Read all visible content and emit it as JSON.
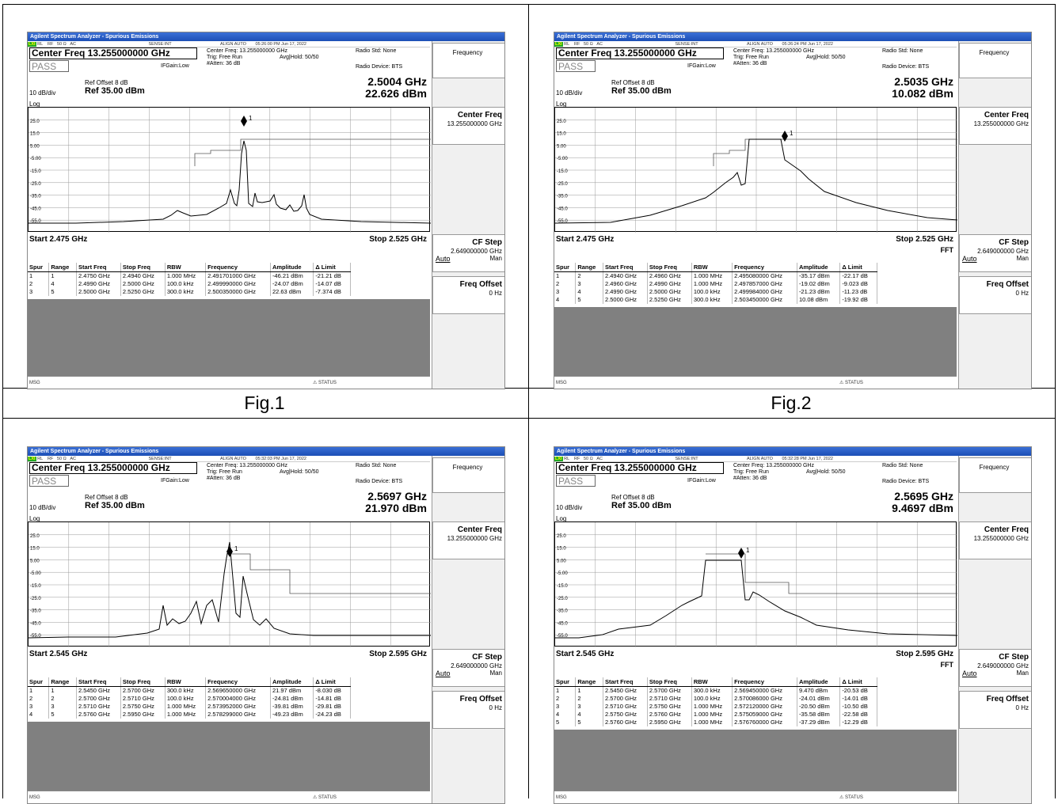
{
  "title_bar": "Agilent Spectrum Analyzer - Spurious Emissions",
  "status": {
    "rl": "RL",
    "rf": "RF",
    "ohm": "50 Ω",
    "ac": "AC",
    "sense": "SENSE:INT",
    "align": "ALIGN AUTO"
  },
  "labels": {
    "trig": "Trig: Free Run",
    "ifgain": "IFGain:Low",
    "radio_std": "Radio Std: None",
    "radio_dev": "Radio Device: BTS",
    "ref_offset": "Ref Offset 8 dB",
    "scale": "10 dB/div",
    "ref": "Ref 35.00 dBm",
    "log": "Log",
    "pass": "PASS",
    "msg": "MSG",
    "status_text": "STATUS",
    "fft": "FFT",
    "center_freq_hdr": "Center Freq: 13.255000000 GHz",
    "cf": "Center Freq 13.255000000 GHz",
    "avg": "Avg|Hold: 50/50",
    "atten": "#Atten: 36 dB"
  },
  "softkeys": {
    "frequency": "Frequency",
    "center_freq": "Center Freq",
    "center_val": "13.255000000 GHz",
    "cf_step": "CF Step",
    "cf_step_val": "2.649000000 GHz",
    "auto": "Auto",
    "man": "Man",
    "freq_offset": "Freq Offset",
    "offset_val": "0 Hz"
  },
  "table_headers": [
    "Spur",
    "Range",
    "Start Freq",
    "Stop Freq",
    "RBW",
    "Frequency",
    "Amplitude",
    "Δ Limit"
  ],
  "y_ticks": [
    "25.0",
    "15.0",
    "5.00",
    "-5.00",
    "-15.0",
    "-25.0",
    "-35.0",
    "-45.0",
    "-55.0"
  ],
  "figures": [
    {
      "caption": "Fig.1",
      "time": "05:26:00 PM Jun 17, 2022",
      "mkr_freq": "2.5004 GHz",
      "mkr_amp": "22.626 dBm",
      "start": "Start 2.475 GHz",
      "stop": "Stop 2.525 GHz",
      "fft": false,
      "rows": [
        [
          "1",
          "1",
          "2.4750 GHz",
          "2.4940 GHz",
          "1.000 MHz",
          "2.491701000 GHz",
          "-46.21 dBm",
          "-21.21 dB"
        ],
        [
          "2",
          "4",
          "2.4990 GHz",
          "2.5000 GHz",
          "100.0 kHz",
          "2.499990000 GHz",
          "-24.07 dBm",
          "-14.07 dB"
        ],
        [
          "3",
          "5",
          "2.5000 GHz",
          "2.5250 GHz",
          "300.0 kHz",
          "2.500350000 GHz",
          "22.63 dBm",
          "-7.374 dB"
        ]
      ]
    },
    {
      "caption": "Fig.2",
      "time": "05:26:24 PM Jun 17, 2022",
      "mkr_freq": "2.5035 GHz",
      "mkr_amp": "10.082 dBm",
      "start": "Start 2.475 GHz",
      "stop": "Stop 2.525 GHz",
      "fft": true,
      "rows": [
        [
          "1",
          "2",
          "2.4940 GHz",
          "2.4960 GHz",
          "1.000 MHz",
          "2.495080000 GHz",
          "-35.17 dBm",
          "-22.17 dB"
        ],
        [
          "2",
          "3",
          "2.4960 GHz",
          "2.4990 GHz",
          "1.000 MHz",
          "2.497857000 GHz",
          "-19.02 dBm",
          "-9.023 dB"
        ],
        [
          "3",
          "4",
          "2.4990 GHz",
          "2.5000 GHz",
          "100.0 kHz",
          "2.499984000 GHz",
          "-21.23 dBm",
          "-11.23 dB"
        ],
        [
          "4",
          "5",
          "2.5000 GHz",
          "2.5250 GHz",
          "300.0 kHz",
          "2.503450000 GHz",
          "10.08 dBm",
          "-19.92 dB"
        ]
      ]
    },
    {
      "caption": "",
      "time": "05:32:03 PM Jun 17, 2022",
      "mkr_freq": "2.5697 GHz",
      "mkr_amp": "21.970 dBm",
      "start": "Start 2.545 GHz",
      "stop": "Stop 2.595 GHz",
      "fft": false,
      "rows": [
        [
          "1",
          "1",
          "2.5450 GHz",
          "2.5700 GHz",
          "300.0 kHz",
          "2.569650000 GHz",
          "21.97 dBm",
          "-8.030 dB"
        ],
        [
          "2",
          "2",
          "2.5700 GHz",
          "2.5710 GHz",
          "100.0 kHz",
          "2.570004000 GHz",
          "-24.81 dBm",
          "-14.81 dB"
        ],
        [
          "3",
          "3",
          "2.5710 GHz",
          "2.5750 GHz",
          "1.000 MHz",
          "2.573952000 GHz",
          "-39.81 dBm",
          "-29.81 dB"
        ],
        [
          "4",
          "5",
          "2.5760 GHz",
          "2.5950 GHz",
          "1.000 MHz",
          "2.578299000 GHz",
          "-49.23 dBm",
          "-24.23 dB"
        ]
      ]
    },
    {
      "caption": "",
      "time": "05:32:28 PM Jun 17, 2022",
      "mkr_freq": "2.5695 GHz",
      "mkr_amp": "9.4697 dBm",
      "start": "Start 2.545 GHz",
      "stop": "Stop 2.595 GHz",
      "fft": true,
      "rows": [
        [
          "1",
          "1",
          "2.5450 GHz",
          "2.5700 GHz",
          "300.0 kHz",
          "2.569450000 GHz",
          "9.470 dBm",
          "-20.53 dB"
        ],
        [
          "2",
          "2",
          "2.5700 GHz",
          "2.5710 GHz",
          "100.0 kHz",
          "2.570086000 GHz",
          "-24.01 dBm",
          "-14.01 dB"
        ],
        [
          "3",
          "3",
          "2.5710 GHz",
          "2.5750 GHz",
          "1.000 MHz",
          "2.572120000 GHz",
          "-20.50 dBm",
          "-10.50 dB"
        ],
        [
          "4",
          "4",
          "2.5750 GHz",
          "2.5760 GHz",
          "1.000 MHz",
          "2.575059000 GHz",
          "-35.58 dBm",
          "-22.58 dB"
        ],
        [
          "5",
          "5",
          "2.5760 GHz",
          "2.5950 GHz",
          "1.000 MHz",
          "2.576760000 GHz",
          "-37.29 dBm",
          "-12.29 dB"
        ]
      ]
    }
  ]
}
